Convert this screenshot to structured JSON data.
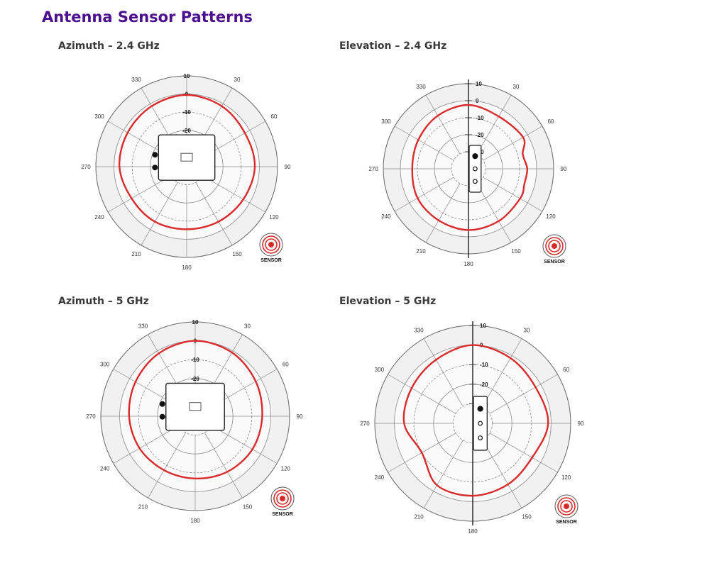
{
  "page": {
    "title": "Antenna Sensor Patterns"
  },
  "colors": {
    "title": "#4b0f8f",
    "trace": "#d92b2b",
    "grid": "#8a8a8a",
    "plot_bg": "#f1f1f1"
  },
  "badge": {
    "label": "SENSOR",
    "icon": "sensor-signal-icon"
  },
  "chart_data": [
    {
      "type": "polar",
      "title": "Azimuth – 2.4 GHz",
      "view": "azimuth",
      "angle_labels": [
        "330",
        "30",
        "60",
        "90",
        "120",
        "150",
        "180",
        "210",
        "240",
        "270",
        "300"
      ],
      "radial_ticks": [
        "10",
        "0",
        "-10",
        "-20",
        "-30"
      ],
      "rlim": [
        -40,
        10
      ],
      "series": [
        {
          "angles": [
            0,
            30,
            60,
            90,
            120,
            150,
            180,
            210,
            240,
            270,
            300,
            330
          ],
          "values": [
            -0.5,
            -1.5,
            -3,
            -2.5,
            -4,
            -5,
            -5.5,
            -5,
            -5,
            -3,
            -2.5,
            -1.5
          ]
        }
      ]
    },
    {
      "type": "polar",
      "title": "Elevation – 2.4 GHz",
      "view": "elevation",
      "angle_labels": [
        "330",
        "30",
        "60",
        "90",
        "120",
        "150",
        "180",
        "210",
        "240",
        "270",
        "300"
      ],
      "radial_ticks": [
        "10",
        "0",
        "-10",
        "-20",
        "-30"
      ],
      "rlim": [
        -40,
        10
      ],
      "series": [
        {
          "angles": [
            0,
            30,
            60,
            75,
            90,
            105,
            120,
            150,
            180,
            210,
            240,
            270,
            300,
            330
          ],
          "values": [
            -2.5,
            -4.5,
            -3,
            -7,
            -5.5,
            -6,
            -5,
            -4.5,
            -4,
            -5,
            -5.5,
            -7,
            -6,
            -4
          ]
        }
      ]
    },
    {
      "type": "polar",
      "title": "Azimuth – 5 GHz",
      "view": "azimuth",
      "angle_labels": [
        "330",
        "30",
        "60",
        "90",
        "120",
        "150",
        "180",
        "210",
        "240",
        "270",
        "300"
      ],
      "radial_ticks": [
        "10",
        "0",
        "-10",
        "-20",
        "-30"
      ],
      "rlim": [
        -40,
        10
      ],
      "series": [
        {
          "angles": [
            0,
            30,
            60,
            90,
            120,
            150,
            180,
            210,
            240,
            270,
            300,
            330
          ],
          "values": [
            0,
            -1,
            -3,
            -4.5,
            -5,
            -6,
            -7,
            -7,
            -6,
            -5,
            -3.5,
            -1.5
          ]
        }
      ]
    },
    {
      "type": "polar",
      "title": "Elevation – 5 GHz",
      "view": "elevation",
      "angle_labels": [
        "330",
        "30",
        "60",
        "90",
        "120",
        "150",
        "180",
        "210",
        "240",
        "270",
        "300"
      ],
      "radial_ticks": [
        "10",
        "0",
        "-10",
        "-20",
        "-30"
      ],
      "rlim": [
        -40,
        10
      ],
      "series": [
        {
          "angles": [
            0,
            30,
            60,
            90,
            120,
            150,
            180,
            210,
            240,
            270,
            300,
            330
          ],
          "values": [
            0,
            -1.5,
            -3,
            -1.5,
            -5,
            -4,
            -3,
            -3.5,
            -10,
            -5,
            -4,
            -2.5
          ]
        }
      ]
    }
  ]
}
